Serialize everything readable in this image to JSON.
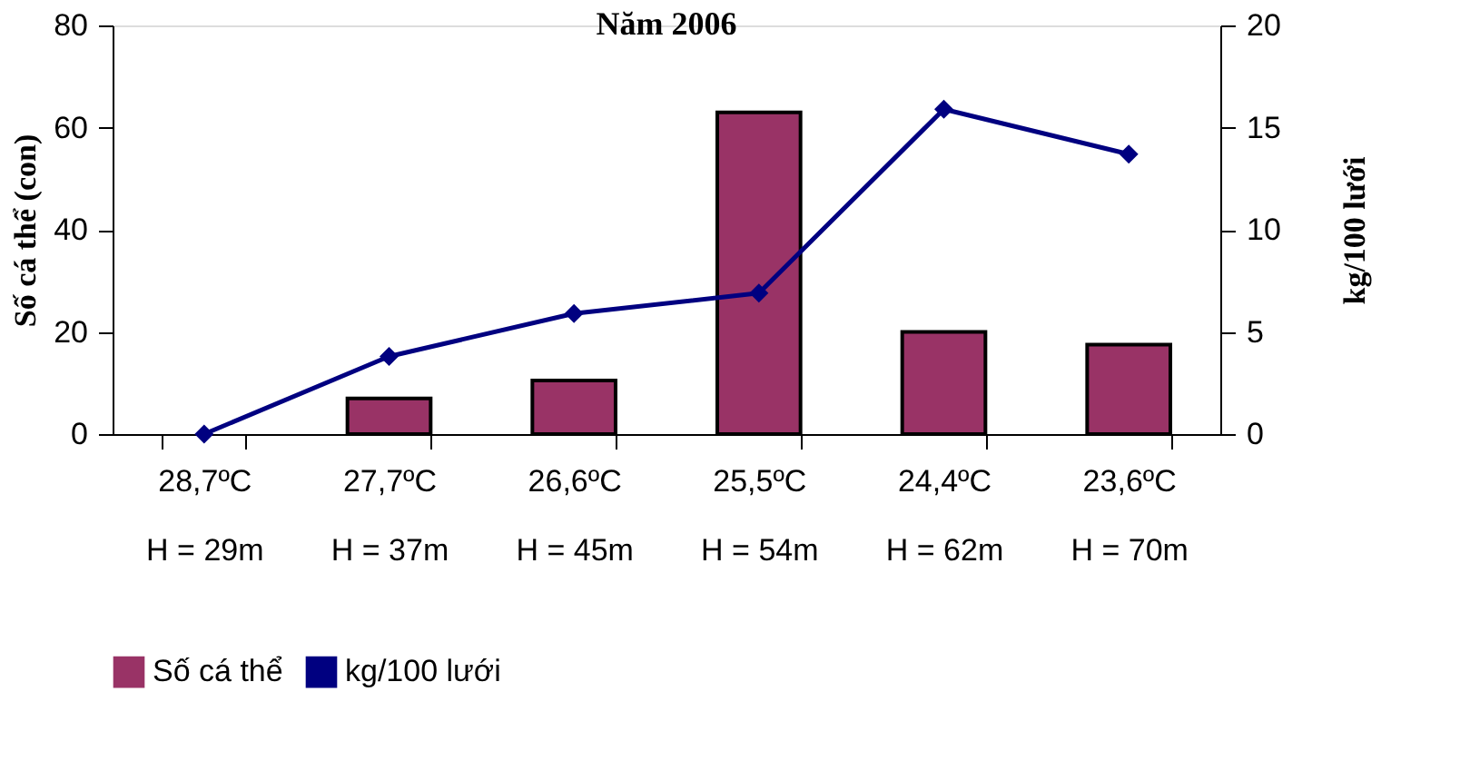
{
  "chart_data": {
    "type": "bar",
    "title": "Năm 2006",
    "categories": [
      "28,7ºC\nH = 29m",
      "27,7ºC\nH = 37m",
      "26,6ºC\nH = 45m",
      "25,5ºC\nH = 54m",
      "24,4ºC\nH = 62m",
      "23,6ºC\nH = 70m"
    ],
    "ylabel": "Số cá thể (con)",
    "y2label": "kg/100 lưới",
    "series": [
      {
        "name": "Số cá thể",
        "color": "#993366",
        "values": [
          null,
          7,
          10.5,
          63,
          20,
          17.5
        ]
      },
      {
        "name": "kg/100 lưới",
        "type": "line",
        "axis": "y2",
        "color": "#000080",
        "values": [
          0,
          3.8,
          5.9,
          6.9,
          15.9,
          13.7
        ]
      }
    ],
    "ylim": [
      0,
      80
    ],
    "yticks": [
      0,
      20,
      40,
      60,
      80
    ],
    "y2lim": [
      0,
      20
    ],
    "y2ticks": [
      0,
      5,
      10,
      15,
      20
    ],
    "grid": false,
    "legend": "bottom",
    "marker": "diamond",
    "line_style": "solid"
  }
}
